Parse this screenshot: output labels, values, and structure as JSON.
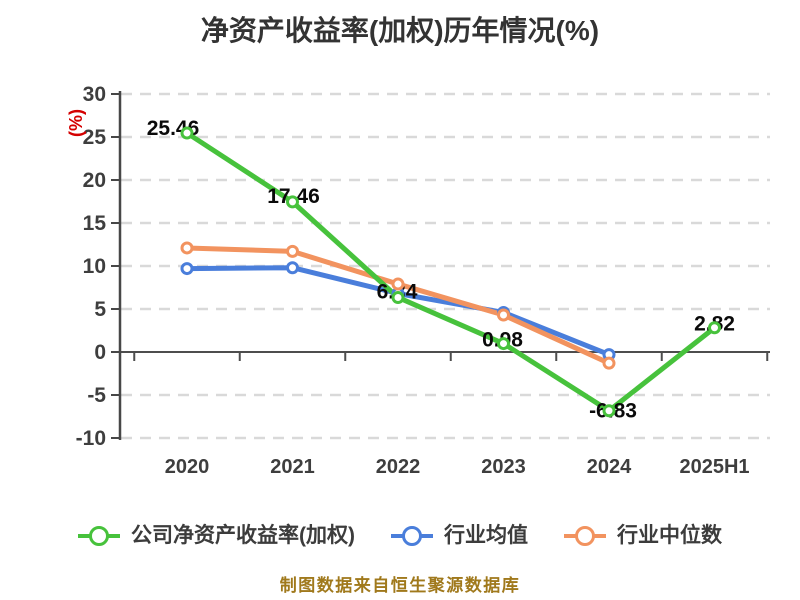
{
  "title": "净资产收益率(加权)历年情况(%)",
  "footer": "制图数据来自恒生聚源数据库",
  "colors": {
    "title": "#333333",
    "axis": "#474747",
    "tick_label": "#3e3e3e",
    "grid": "#d9d9d9",
    "zero_line": "#4d4d4d",
    "point_label": "#0a0a0a",
    "ylabel": "#d40000",
    "footer": "#a0791c",
    "series_company": "#47c23c",
    "series_industry_avg": "#4a7edb",
    "series_industry_median": "#f2935f",
    "marker_fill": "#ffffff"
  },
  "chart_data": {
    "type": "line",
    "title": "净资产收益率(加权)历年情况(%)",
    "categories": [
      "2020",
      "2021",
      "2022",
      "2023",
      "2024",
      "2025H1"
    ],
    "series": [
      {
        "name": "公司净资产收益率(加权)",
        "color": "#47c23c",
        "values": [
          25.46,
          17.46,
          6.34,
          0.98,
          -6.83,
          2.82
        ],
        "point_labels": [
          "25.46",
          "17.46",
          "6.34",
          "0.98",
          "-6.83",
          "2.82"
        ]
      },
      {
        "name": "行业均值",
        "color": "#4a7edb",
        "values": [
          9.7,
          9.8,
          6.8,
          4.6,
          -0.3,
          null
        ],
        "point_labels": null
      },
      {
        "name": "行业中位数",
        "color": "#f2935f",
        "values": [
          12.1,
          11.7,
          7.9,
          4.3,
          -1.3,
          null
        ],
        "point_labels": null
      }
    ],
    "xlabel": "",
    "ylabel": "(%)",
    "ylim": [
      -10,
      30
    ],
    "yticks": [
      30,
      25,
      20,
      15,
      10,
      5,
      0,
      -5,
      -10
    ],
    "grid": "horizontal-dashed",
    "legend_position": "bottom",
    "marker": "circle-white-filled"
  }
}
